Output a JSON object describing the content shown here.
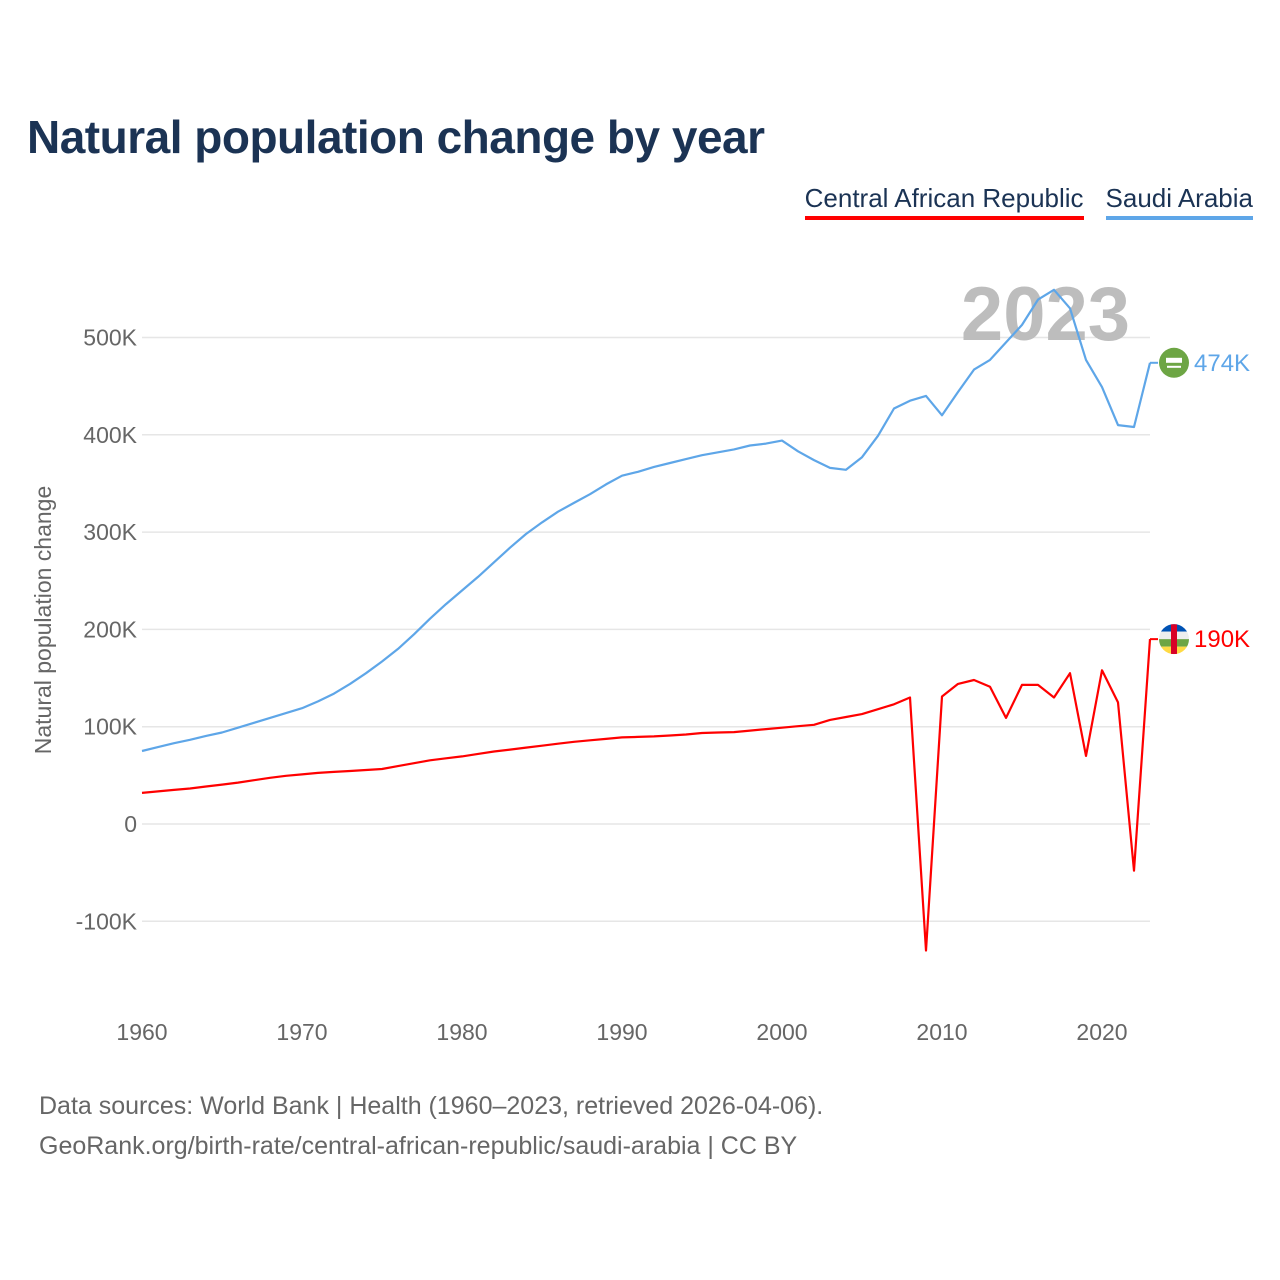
{
  "title": "Natural population change by year",
  "footer": {
    "line1": "Data sources: World Bank | Health (1960–2023, retrieved 2026-04-06).",
    "line2": "GeoRank.org/birth-rate/central-african-republic/saudi-arabia | CC BY"
  },
  "chart_data": {
    "type": "line",
    "title": "Natural population change by year",
    "xlabel": "",
    "ylabel": "Natural population change",
    "xlim": [
      1960,
      2023
    ],
    "ylim": [
      -160000,
      560000
    ],
    "yticks": [
      -100000,
      0,
      100000,
      200000,
      300000,
      400000,
      500000
    ],
    "ytick_labels": [
      "-100K",
      "0",
      "100K",
      "200K",
      "300K",
      "400K",
      "500K"
    ],
    "xticks": [
      1960,
      1970,
      1980,
      1990,
      2000,
      2010,
      2020
    ],
    "xtick_labels": [
      "1960",
      "1970",
      "1980",
      "1990",
      "2000",
      "2010",
      "2020"
    ],
    "grid": true,
    "legend_position": "top-right",
    "year_watermark": "2023",
    "x": [
      1960,
      1961,
      1962,
      1963,
      1964,
      1965,
      1966,
      1967,
      1968,
      1969,
      1970,
      1971,
      1972,
      1973,
      1974,
      1975,
      1976,
      1977,
      1978,
      1979,
      1980,
      1981,
      1982,
      1983,
      1984,
      1985,
      1986,
      1987,
      1988,
      1989,
      1990,
      1991,
      1992,
      1993,
      1994,
      1995,
      1996,
      1997,
      1998,
      1999,
      2000,
      2001,
      2002,
      2003,
      2004,
      2005,
      2006,
      2007,
      2008,
      2009,
      2010,
      2011,
      2012,
      2013,
      2014,
      2015,
      2016,
      2017,
      2018,
      2019,
      2020,
      2021,
      2022,
      2023
    ],
    "series": [
      {
        "name": "Central African Republic",
        "color": "#ff0000",
        "end_label": "190K",
        "flag": "central-african-republic-flag-icon",
        "values": [
          32000,
          33500,
          35000,
          36500,
          38500,
          40500,
          42500,
          45000,
          47500,
          49500,
          51000,
          52500,
          53500,
          54500,
          55500,
          56500,
          59500,
          62500,
          65500,
          67500,
          69500,
          72000,
          74500,
          76500,
          78500,
          80500,
          82500,
          84500,
          86000,
          87500,
          89000,
          89500,
          90000,
          91000,
          92000,
          93500,
          94000,
          94500,
          96000,
          97500,
          99000,
          100500,
          102000,
          107000,
          110000,
          113000,
          118000,
          123000,
          130000,
          -130000,
          131000,
          144000,
          148000,
          141000,
          109000,
          143000,
          143000,
          130000,
          155000,
          70000,
          158000,
          125000,
          -48000,
          190000
        ]
      },
      {
        "name": "Saudi Arabia",
        "color": "#5ea6e8",
        "end_label": "474K",
        "flag": "saudi-arabia-flag-icon",
        "values": [
          75000,
          79000,
          83000,
          86500,
          90500,
          94000,
          99000,
          104000,
          109000,
          114000,
          119000,
          126000,
          134000,
          144000,
          155000,
          167000,
          180000,
          195000,
          211000,
          226000,
          240000,
          254000,
          269000,
          284000,
          298000,
          310000,
          321000,
          330000,
          339000,
          349000,
          358000,
          362000,
          367000,
          371000,
          375000,
          379000,
          382000,
          385000,
          389000,
          391000,
          394000,
          383000,
          374000,
          366000,
          364000,
          377000,
          399000,
          427000,
          435000,
          440000,
          420000,
          444000,
          467000,
          477000,
          495000,
          513000,
          539000,
          549000,
          530000,
          477000,
          449000,
          410000,
          408000,
          474000
        ]
      }
    ]
  }
}
